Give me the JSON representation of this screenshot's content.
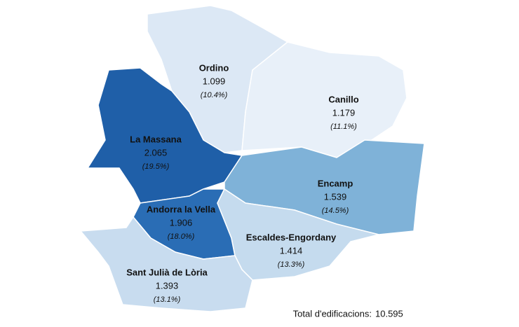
{
  "chart_data": {
    "type": "choropleth",
    "regions": [
      "Ordino",
      "Canillo",
      "La Massana",
      "Encamp",
      "Andorra la Vella",
      "Escaldes-Engordany",
      "Sant Julià de Lòria"
    ],
    "values": [
      1099,
      1179,
      2065,
      1539,
      1906,
      1414,
      1393
    ],
    "value_labels": [
      "1.099",
      "1.179",
      "2.065",
      "1.539",
      "1.906",
      "1.414",
      "1.393"
    ],
    "shares": [
      10.4,
      11.1,
      19.5,
      14.5,
      18.0,
      13.3,
      13.1
    ],
    "share_labels": [
      "(10.4%)",
      "(11.1%)",
      "(19.5%)",
      "(14.5%)",
      "(18.0%)",
      "(13.3%)",
      "(13.1%)"
    ],
    "colors": [
      "#dce8f5",
      "#e8f0f9",
      "#1f5fa8",
      "#7fb2d8",
      "#2a6db5",
      "#c5dbee",
      "#c8dcef"
    ],
    "total_text": "Total d'edificacions:",
    "total": 10595,
    "total_label": "10.595"
  }
}
